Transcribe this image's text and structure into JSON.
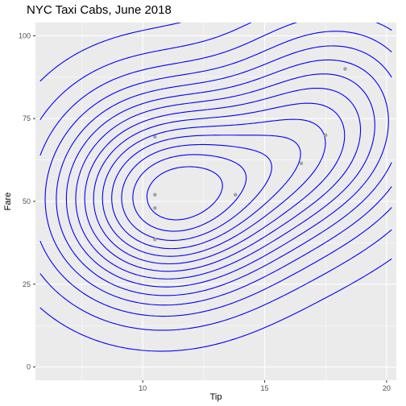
{
  "chart_data": {
    "type": "scatter",
    "title": "NYC Taxi Cabs, June 2018",
    "xlabel": "Tip",
    "ylabel": "Fare",
    "xlim": [
      5.6,
      20.4
    ],
    "ylim": [
      -4,
      104
    ],
    "x_ticks": [
      10,
      15,
      20
    ],
    "x_tick_labels": [
      "10",
      "15",
      "20"
    ],
    "y_ticks": [
      0,
      25,
      50,
      75,
      100
    ],
    "y_tick_labels": [
      "0",
      "25",
      "50",
      "75",
      "100"
    ],
    "grid": true,
    "legend": "none",
    "colors": {
      "panel": "#ebebeb",
      "grid_major": "#ffffff",
      "contour": "#0000ff",
      "point": "#a6a6a6"
    },
    "points": [
      {
        "x": 10.5,
        "y": 69.5
      },
      {
        "x": 10.5,
        "y": 52
      },
      {
        "x": 10.5,
        "y": 48
      },
      {
        "x": 10.5,
        "y": 38.5
      },
      {
        "x": 13.8,
        "y": 52
      },
      {
        "x": 16.5,
        "y": 61.5
      },
      {
        "x": 17.5,
        "y": 70
      },
      {
        "x": 18.3,
        "y": 90
      }
    ]
  }
}
